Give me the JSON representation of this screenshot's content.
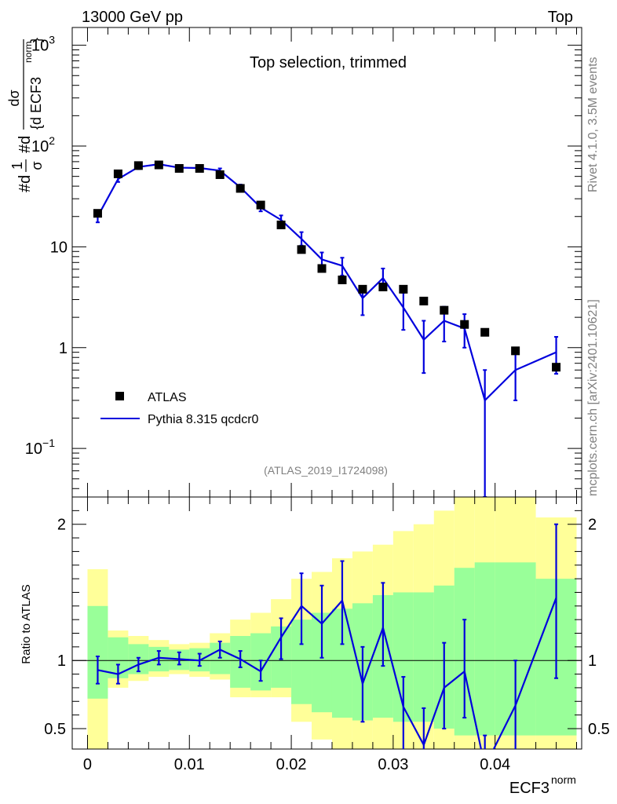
{
  "header": {
    "left": "13000 GeV pp",
    "right": "Top"
  },
  "side_labels": {
    "rivet": "Rivet 4.1.0,  3.5M events",
    "mcplots": "mcplots.cern.ch [arXiv:2401.10621]"
  },
  "chart_data": [
    {
      "type": "scatter",
      "yscale": "log",
      "title": "Top selection, trimmed",
      "analysis_label": "(ATLAS_2019_I1724098)",
      "ylabel_parts": {
        "a": "#d",
        "frac1_num": "1",
        "frac1_den": "σ",
        "b": "#d",
        "frac2_num": "dσ",
        "frac2_den": "{d ECF3",
        "sup": "norm",
        "close": "}"
      },
      "xlim": [
        -0.0015,
        0.0485
      ],
      "ylim": [
        0.033,
        1500
      ],
      "yticks": [
        {
          "value": 0.1,
          "base": "10",
          "exp": "−1"
        },
        {
          "value": 1,
          "label": "1"
        },
        {
          "value": 10,
          "label": "10"
        },
        {
          "value": 100,
          "base": "10",
          "exp": "2"
        },
        {
          "value": 1000,
          "base": "10",
          "exp": "3"
        }
      ],
      "legend": {
        "position": "lower-left",
        "entries": [
          {
            "label": "ATLAS",
            "style": "marker"
          },
          {
            "label": "Pythia 8.315 qcdcr0",
            "style": "line"
          }
        ]
      },
      "series": [
        {
          "name": "ATLAS",
          "color": "#000000",
          "x": [
            0.001,
            0.003,
            0.005,
            0.007,
            0.009,
            0.011,
            0.013,
            0.015,
            0.017,
            0.019,
            0.021,
            0.023,
            0.025,
            0.027,
            0.029,
            0.031,
            0.033,
            0.035,
            0.037,
            0.039,
            0.042,
            0.046
          ],
          "y": [
            21.5,
            53,
            64,
            65,
            60,
            60,
            52,
            38,
            26,
            16.5,
            9.4,
            6.1,
            4.7,
            3.8,
            4.0,
            3.8,
            2.9,
            2.35,
            1.7,
            1.42,
            0.93,
            0.64
          ]
        },
        {
          "name": "Pythia 8.315 qcdcr0",
          "color": "#0000dd",
          "x": [
            0.001,
            0.003,
            0.005,
            0.007,
            0.009,
            0.011,
            0.013,
            0.015,
            0.017,
            0.019,
            0.021,
            0.023,
            0.025,
            0.027,
            0.029,
            0.031,
            0.033,
            0.035,
            0.037,
            0.039,
            0.042,
            0.046
          ],
          "y": [
            20,
            47,
            62,
            66,
            61,
            60.5,
            57,
            39,
            24.5,
            18.5,
            12,
            7.5,
            6.5,
            3.1,
            4.9,
            2.5,
            1.2,
            1.85,
            1.55,
            0.3,
            0.6,
            0.9
          ],
          "err_low": [
            17.5,
            44,
            59,
            63,
            58,
            58,
            54,
            36.5,
            22.5,
            16.5,
            10.3,
            6.2,
            5.2,
            2.1,
            3.8,
            1.5,
            0.56,
            1.15,
            1.0,
            0.02,
            0.3,
            0.55
          ],
          "err_high": [
            22.5,
            50,
            65,
            69,
            64,
            63,
            60,
            41.5,
            26.5,
            20.5,
            14,
            8.8,
            7.8,
            4.1,
            6.1,
            3.5,
            1.85,
            2.55,
            2.15,
            0.6,
            0.9,
            1.28
          ]
        }
      ]
    },
    {
      "type": "line",
      "ylabel": "Ratio to ATLAS",
      "xlabel": "ECF3",
      "xlabel_sup": "norm",
      "xlim": [
        -0.0015,
        0.0485
      ],
      "ylim": [
        0.35,
        2.2
      ],
      "xticks": [
        {
          "value": 0,
          "label": "0"
        },
        {
          "value": 0.01,
          "label": "0.01"
        },
        {
          "value": 0.02,
          "label": "0.02"
        },
        {
          "value": 0.03,
          "label": "0.03"
        },
        {
          "value": 0.04,
          "label": "0.04"
        }
      ],
      "yticks": [
        {
          "value": 0.5,
          "label": "0.5"
        },
        {
          "value": 1,
          "label": "1"
        },
        {
          "value": 2,
          "label": "2"
        }
      ],
      "bins": [
        [
          0.0,
          0.002
        ],
        [
          0.002,
          0.004
        ],
        [
          0.004,
          0.006
        ],
        [
          0.006,
          0.008
        ],
        [
          0.008,
          0.01
        ],
        [
          0.01,
          0.012
        ],
        [
          0.012,
          0.014
        ],
        [
          0.014,
          0.016
        ],
        [
          0.016,
          0.018
        ],
        [
          0.018,
          0.02
        ],
        [
          0.02,
          0.022
        ],
        [
          0.022,
          0.024
        ],
        [
          0.024,
          0.026
        ],
        [
          0.026,
          0.028
        ],
        [
          0.028,
          0.03
        ],
        [
          0.03,
          0.032
        ],
        [
          0.032,
          0.034
        ],
        [
          0.034,
          0.036
        ],
        [
          0.036,
          0.038
        ],
        [
          0.038,
          0.04
        ],
        [
          0.04,
          0.044
        ],
        [
          0.044,
          0.048
        ]
      ],
      "band_yellow_lo": [
        0.2,
        0.8,
        0.85,
        0.88,
        0.9,
        0.88,
        0.86,
        0.73,
        0.73,
        0.73,
        0.55,
        0.42,
        0.35,
        0.3,
        0.3,
        0.25,
        0.25,
        0.2,
        0.2,
        0.2,
        0.3,
        0.35
      ],
      "band_yellow_hi": [
        1.67,
        1.22,
        1.18,
        1.15,
        1.12,
        1.13,
        1.2,
        1.3,
        1.35,
        1.45,
        1.6,
        1.65,
        1.75,
        1.8,
        1.85,
        1.95,
        2.0,
        2.1,
        2.3,
        2.3,
        2.3,
        2.05
      ],
      "band_green_lo": [
        0.72,
        0.87,
        0.9,
        0.92,
        0.93,
        0.92,
        0.9,
        0.8,
        0.78,
        0.8,
        0.68,
        0.62,
        0.58,
        0.56,
        0.58,
        0.55,
        0.55,
        0.5,
        0.45,
        0.45,
        0.45,
        0.45
      ],
      "band_green_hi": [
        1.4,
        1.17,
        1.12,
        1.1,
        1.08,
        1.09,
        1.13,
        1.18,
        1.2,
        1.25,
        1.3,
        1.35,
        1.38,
        1.42,
        1.48,
        1.5,
        1.5,
        1.55,
        1.68,
        1.72,
        1.72,
        1.6
      ],
      "series": [
        {
          "name": "Pythia 8.315 qcdcr0 / ATLAS",
          "color": "#0000dd",
          "x": [
            0.001,
            0.003,
            0.005,
            0.007,
            0.009,
            0.011,
            0.013,
            0.015,
            0.017,
            0.019,
            0.021,
            0.023,
            0.025,
            0.027,
            0.029,
            0.031,
            0.033,
            0.035,
            0.037,
            0.039,
            0.042,
            0.046
          ],
          "y": [
            0.93,
            0.9,
            0.97,
            1.02,
            1.01,
            1.0,
            1.08,
            1.01,
            0.92,
            1.17,
            1.4,
            1.27,
            1.44,
            0.83,
            1.24,
            0.66,
            0.38,
            0.8,
            0.92,
            0.22,
            0.67,
            1.46
          ],
          "err_low": [
            0.83,
            0.83,
            0.92,
            0.97,
            0.97,
            0.96,
            1.02,
            0.95,
            0.85,
            1.01,
            1.12,
            1.02,
            1.12,
            0.55,
            0.96,
            0.33,
            0.19,
            0.5,
            0.58,
            0.01,
            0.32,
            0.87
          ],
          "err_high": [
            1.03,
            0.97,
            1.02,
            1.07,
            1.06,
            1.05,
            1.14,
            1.07,
            1.0,
            1.31,
            1.64,
            1.55,
            1.73,
            1.1,
            1.57,
            0.88,
            0.65,
            1.13,
            1.3,
            0.45,
            1.0,
            2.0
          ]
        }
      ]
    }
  ]
}
